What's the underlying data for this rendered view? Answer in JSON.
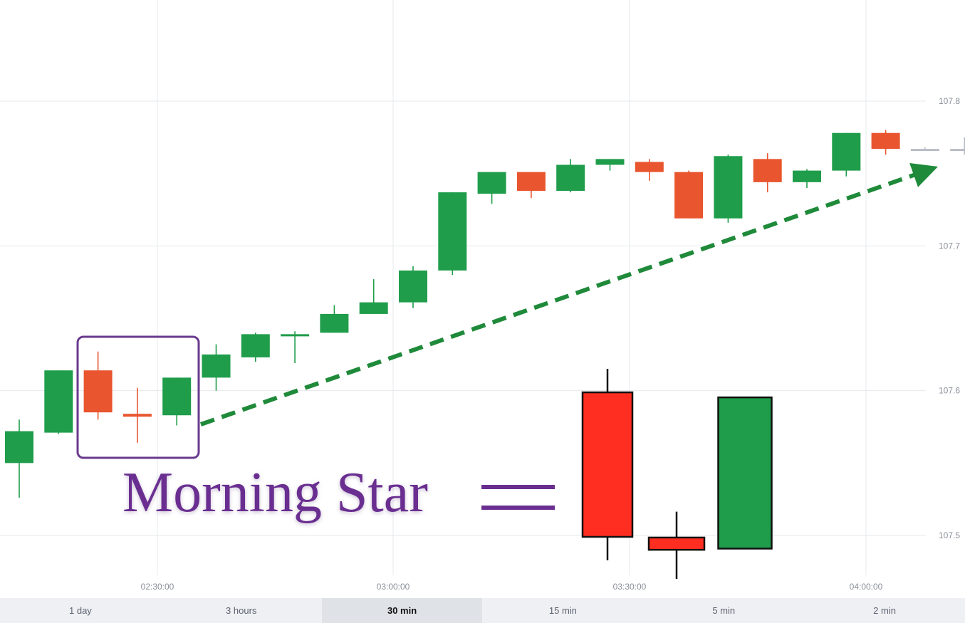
{
  "chart_data": {
    "type": "candlestick",
    "title": "",
    "xlabel": "",
    "ylabel": "",
    "ylim": [
      107.48,
      107.87
    ],
    "y_ticks": [
      "107.8",
      "107.7",
      "107.6",
      "107.5"
    ],
    "x_ticks": [
      "02:30:00",
      "03:00:00",
      "03:30:00",
      "04:00:00"
    ],
    "grid": true,
    "colors": {
      "up": "#1f9d4a",
      "down": "#e8552e",
      "trend_arrow": "#1f8a3a",
      "highlight_box": "#6a3a8e",
      "label_text": "#6a2e91"
    },
    "candles": [
      {
        "o": 107.55,
        "c": 107.572,
        "h": 107.58,
        "l": 107.526
      },
      {
        "o": 107.571,
        "c": 107.614,
        "h": 107.614,
        "l": 107.57
      },
      {
        "o": 107.614,
        "c": 107.585,
        "h": 107.627,
        "l": 107.58
      },
      {
        "o": 107.584,
        "c": 107.582,
        "h": 107.602,
        "l": 107.564
      },
      {
        "o": 107.583,
        "c": 107.609,
        "h": 107.609,
        "l": 107.576
      },
      {
        "o": 107.609,
        "c": 107.625,
        "h": 107.632,
        "l": 107.6
      },
      {
        "o": 107.623,
        "c": 107.639,
        "h": 107.64,
        "l": 107.62
      },
      {
        "o": 107.639,
        "c": 107.639,
        "h": 107.641,
        "l": 107.619
      },
      {
        "o": 107.64,
        "c": 107.653,
        "h": 107.659,
        "l": 107.64
      },
      {
        "o": 107.653,
        "c": 107.661,
        "h": 107.677,
        "l": 107.653
      },
      {
        "o": 107.661,
        "c": 107.683,
        "h": 107.686,
        "l": 107.657
      },
      {
        "o": 107.683,
        "c": 107.737,
        "h": 107.737,
        "l": 107.68
      },
      {
        "o": 107.736,
        "c": 107.751,
        "h": 107.751,
        "l": 107.729
      },
      {
        "o": 107.751,
        "c": 107.738,
        "h": 107.751,
        "l": 107.733
      },
      {
        "o": 107.738,
        "c": 107.756,
        "h": 107.76,
        "l": 107.737
      },
      {
        "o": 107.756,
        "c": 107.76,
        "h": 107.76,
        "l": 107.752
      },
      {
        "o": 107.758,
        "c": 107.751,
        "h": 107.76,
        "l": 107.745
      },
      {
        "o": 107.751,
        "c": 107.719,
        "h": 107.752,
        "l": 107.719
      },
      {
        "o": 107.719,
        "c": 107.762,
        "h": 107.763,
        "l": 107.716
      },
      {
        "o": 107.76,
        "c": 107.744,
        "h": 107.764,
        "l": 107.737
      },
      {
        "o": 107.744,
        "c": 107.752,
        "h": 107.753,
        "l": 107.74
      },
      {
        "o": 107.752,
        "c": 107.778,
        "h": 107.778,
        "l": 107.748
      },
      {
        "o": 107.778,
        "c": 107.767,
        "h": 107.78,
        "l": 107.763
      },
      {
        "o": 107.767,
        "c": 107.767,
        "h": 107.768,
        "l": 107.766
      },
      {
        "o": 107.767,
        "c": 107.767,
        "h": 107.775,
        "l": 107.763
      }
    ],
    "highlighted_candles": [
      2,
      3,
      4
    ],
    "annotation": {
      "label": "Morning Star",
      "symbol": "=",
      "pattern_candles": [
        {
          "type": "bearish",
          "color": "#ff2e20",
          "o": 0.86,
          "c": 0.0,
          "h": 1.0,
          "l": -0.14
        },
        {
          "type": "doji",
          "color": "#ff2e20",
          "o": -0.004,
          "c": -0.077,
          "h": 0.15,
          "l": -0.25
        },
        {
          "type": "bullish",
          "color": "#1f9d4a",
          "o": -0.07,
          "c": 0.83,
          "h": 0.83,
          "l": -0.07
        }
      ]
    }
  },
  "timeframes": [
    {
      "label": "1 day",
      "active": false
    },
    {
      "label": "3 hours",
      "active": false
    },
    {
      "label": "30 min",
      "active": true
    },
    {
      "label": "15 min",
      "active": false
    },
    {
      "label": "5 min",
      "active": false
    },
    {
      "label": "2 min",
      "active": false
    }
  ]
}
